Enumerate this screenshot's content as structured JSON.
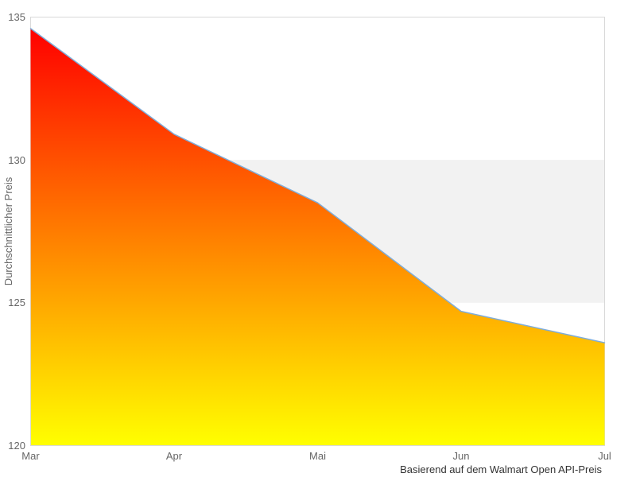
{
  "chart_data": {
    "type": "area",
    "title": "",
    "categories": [
      "Mar",
      "Apr",
      "Mai",
      "Jun",
      "Jul"
    ],
    "series": [
      {
        "name": "Durchschnittlicher Preis",
        "values": [
          134.6,
          130.9,
          128.5,
          124.7,
          123.6
        ]
      }
    ],
    "xlabel": "",
    "ylabel": "Durchschnittlicher Preis",
    "ylim": [
      120,
      135
    ],
    "yticks": [
      120,
      125,
      130,
      135
    ],
    "grid": false,
    "legend_position": "none",
    "caption": "Basierend auf dem Walmart Open API-Preis",
    "plot_bands": [
      {
        "from": 125,
        "to": 130,
        "color": "#f2f2f2"
      }
    ],
    "style": {
      "line_color": "#7fadd9",
      "area_gradient_top": "#ff0000",
      "area_gradient_bottom": "#ffff00",
      "plot_border_color": "#d9d9d9",
      "tick_label_color": "#666666",
      "axis_title_color": "#666666",
      "caption_color": "#333333",
      "background": "#ffffff"
    }
  }
}
